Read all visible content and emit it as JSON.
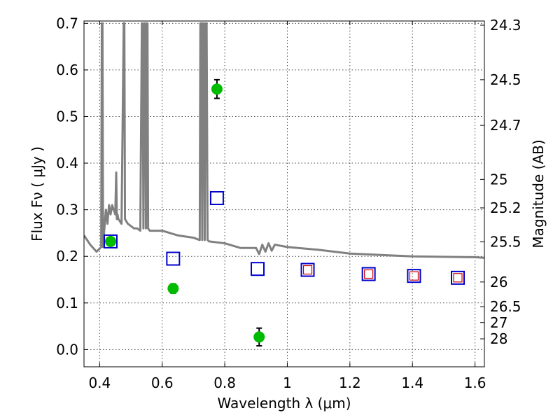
{
  "chart_data": {
    "type": "scatter",
    "xlabel": "Wavelength  λ (μm)",
    "ylabel": "Flux  Fν  ( μJy )",
    "y2label": "Magnitude (AB)",
    "xlim": [
      0.35,
      1.63
    ],
    "ylim": [
      -0.037,
      0.705
    ],
    "grid": true,
    "x_ticks": [
      0.4,
      0.6,
      0.8,
      1.0,
      1.2,
      1.4,
      1.6
    ],
    "x_tick_labels": [
      "0.4",
      "0.6",
      "0.8",
      "1",
      "1.2",
      "1.4",
      "1.6"
    ],
    "y_ticks": [
      0.0,
      0.1,
      0.2,
      0.3,
      0.4,
      0.5,
      0.6,
      0.7
    ],
    "y_tick_labels": [
      "0.0",
      "0.1",
      "0.2",
      "0.3",
      "0.4",
      "0.5",
      "0.6",
      "0.7"
    ],
    "y2_ticks": [
      {
        "label": "24.3",
        "flux": 0.696
      },
      {
        "label": "24.5",
        "flux": 0.579
      },
      {
        "label": "24.7",
        "flux": 0.481
      },
      {
        "label": "25",
        "flux": 0.365
      },
      {
        "label": "25.2",
        "flux": 0.304
      },
      {
        "label": "25.5",
        "flux": 0.231
      },
      {
        "label": "26",
        "flux": 0.145
      },
      {
        "label": "26.5",
        "flux": 0.092
      },
      {
        "label": "27",
        "flux": 0.058
      },
      {
        "label": "28",
        "flux": 0.023
      }
    ],
    "series": [
      {
        "kind": "line",
        "color": "#808080",
        "x": [
          0.35,
          0.37,
          0.39,
          0.405,
          0.407,
          0.409,
          0.411,
          0.414,
          0.42,
          0.425,
          0.43,
          0.435,
          0.44,
          0.445,
          0.45,
          0.453,
          0.455,
          0.457,
          0.46,
          0.47,
          0.477,
          0.479,
          0.481,
          0.49,
          0.5,
          0.51,
          0.52,
          0.53,
          0.535,
          0.537,
          0.54,
          0.543,
          0.546,
          0.548,
          0.551,
          0.553,
          0.555,
          0.56,
          0.6,
          0.65,
          0.7,
          0.72,
          0.722,
          0.725,
          0.728,
          0.73,
          0.733,
          0.736,
          0.739,
          0.742,
          0.745,
          0.75,
          0.8,
          0.85,
          0.9,
          0.91,
          0.92,
          0.93,
          0.94,
          0.95,
          0.96,
          1.0,
          1.1,
          1.2,
          1.3,
          1.4,
          1.5,
          1.6,
          1.63
        ],
        "y": [
          0.245,
          0.225,
          0.21,
          0.22,
          0.7,
          0.7,
          0.22,
          0.25,
          0.3,
          0.27,
          0.31,
          0.29,
          0.31,
          0.3,
          0.29,
          0.38,
          0.28,
          0.29,
          0.28,
          0.27,
          0.7,
          0.7,
          0.28,
          0.27,
          0.265,
          0.26,
          0.26,
          0.255,
          0.7,
          0.7,
          0.26,
          0.7,
          0.7,
          0.26,
          0.7,
          0.7,
          0.26,
          0.255,
          0.255,
          0.245,
          0.24,
          0.235,
          0.7,
          0.7,
          0.235,
          0.7,
          0.7,
          0.235,
          0.7,
          0.7,
          0.235,
          0.232,
          0.228,
          0.218,
          0.218,
          0.205,
          0.225,
          0.21,
          0.228,
          0.212,
          0.225,
          0.22,
          0.214,
          0.206,
          0.203,
          0.2,
          0.199,
          0.198,
          0.197
        ]
      },
      {
        "kind": "points",
        "marker": "circle",
        "color": "#00bb00",
        "x": [
          0.435,
          0.635,
          0.775,
          0.91
        ],
        "y": [
          0.232,
          0.131,
          0.559,
          0.027
        ],
        "yerr": [
          0,
          0.01,
          0.02,
          0.019
        ]
      },
      {
        "kind": "points",
        "marker": "square",
        "color": "#0000cc",
        "size": "large",
        "x": [
          0.435,
          0.635,
          0.775,
          0.905,
          1.065,
          1.26,
          1.405,
          1.545
        ],
        "y": [
          0.232,
          0.195,
          0.325,
          0.173,
          0.171,
          0.162,
          0.158,
          0.154
        ]
      },
      {
        "kind": "points",
        "marker": "square",
        "color": "#cc0000",
        "size": "small",
        "x": [
          1.065,
          1.26,
          1.405,
          1.545
        ],
        "y": [
          0.171,
          0.162,
          0.158,
          0.154
        ]
      }
    ]
  }
}
